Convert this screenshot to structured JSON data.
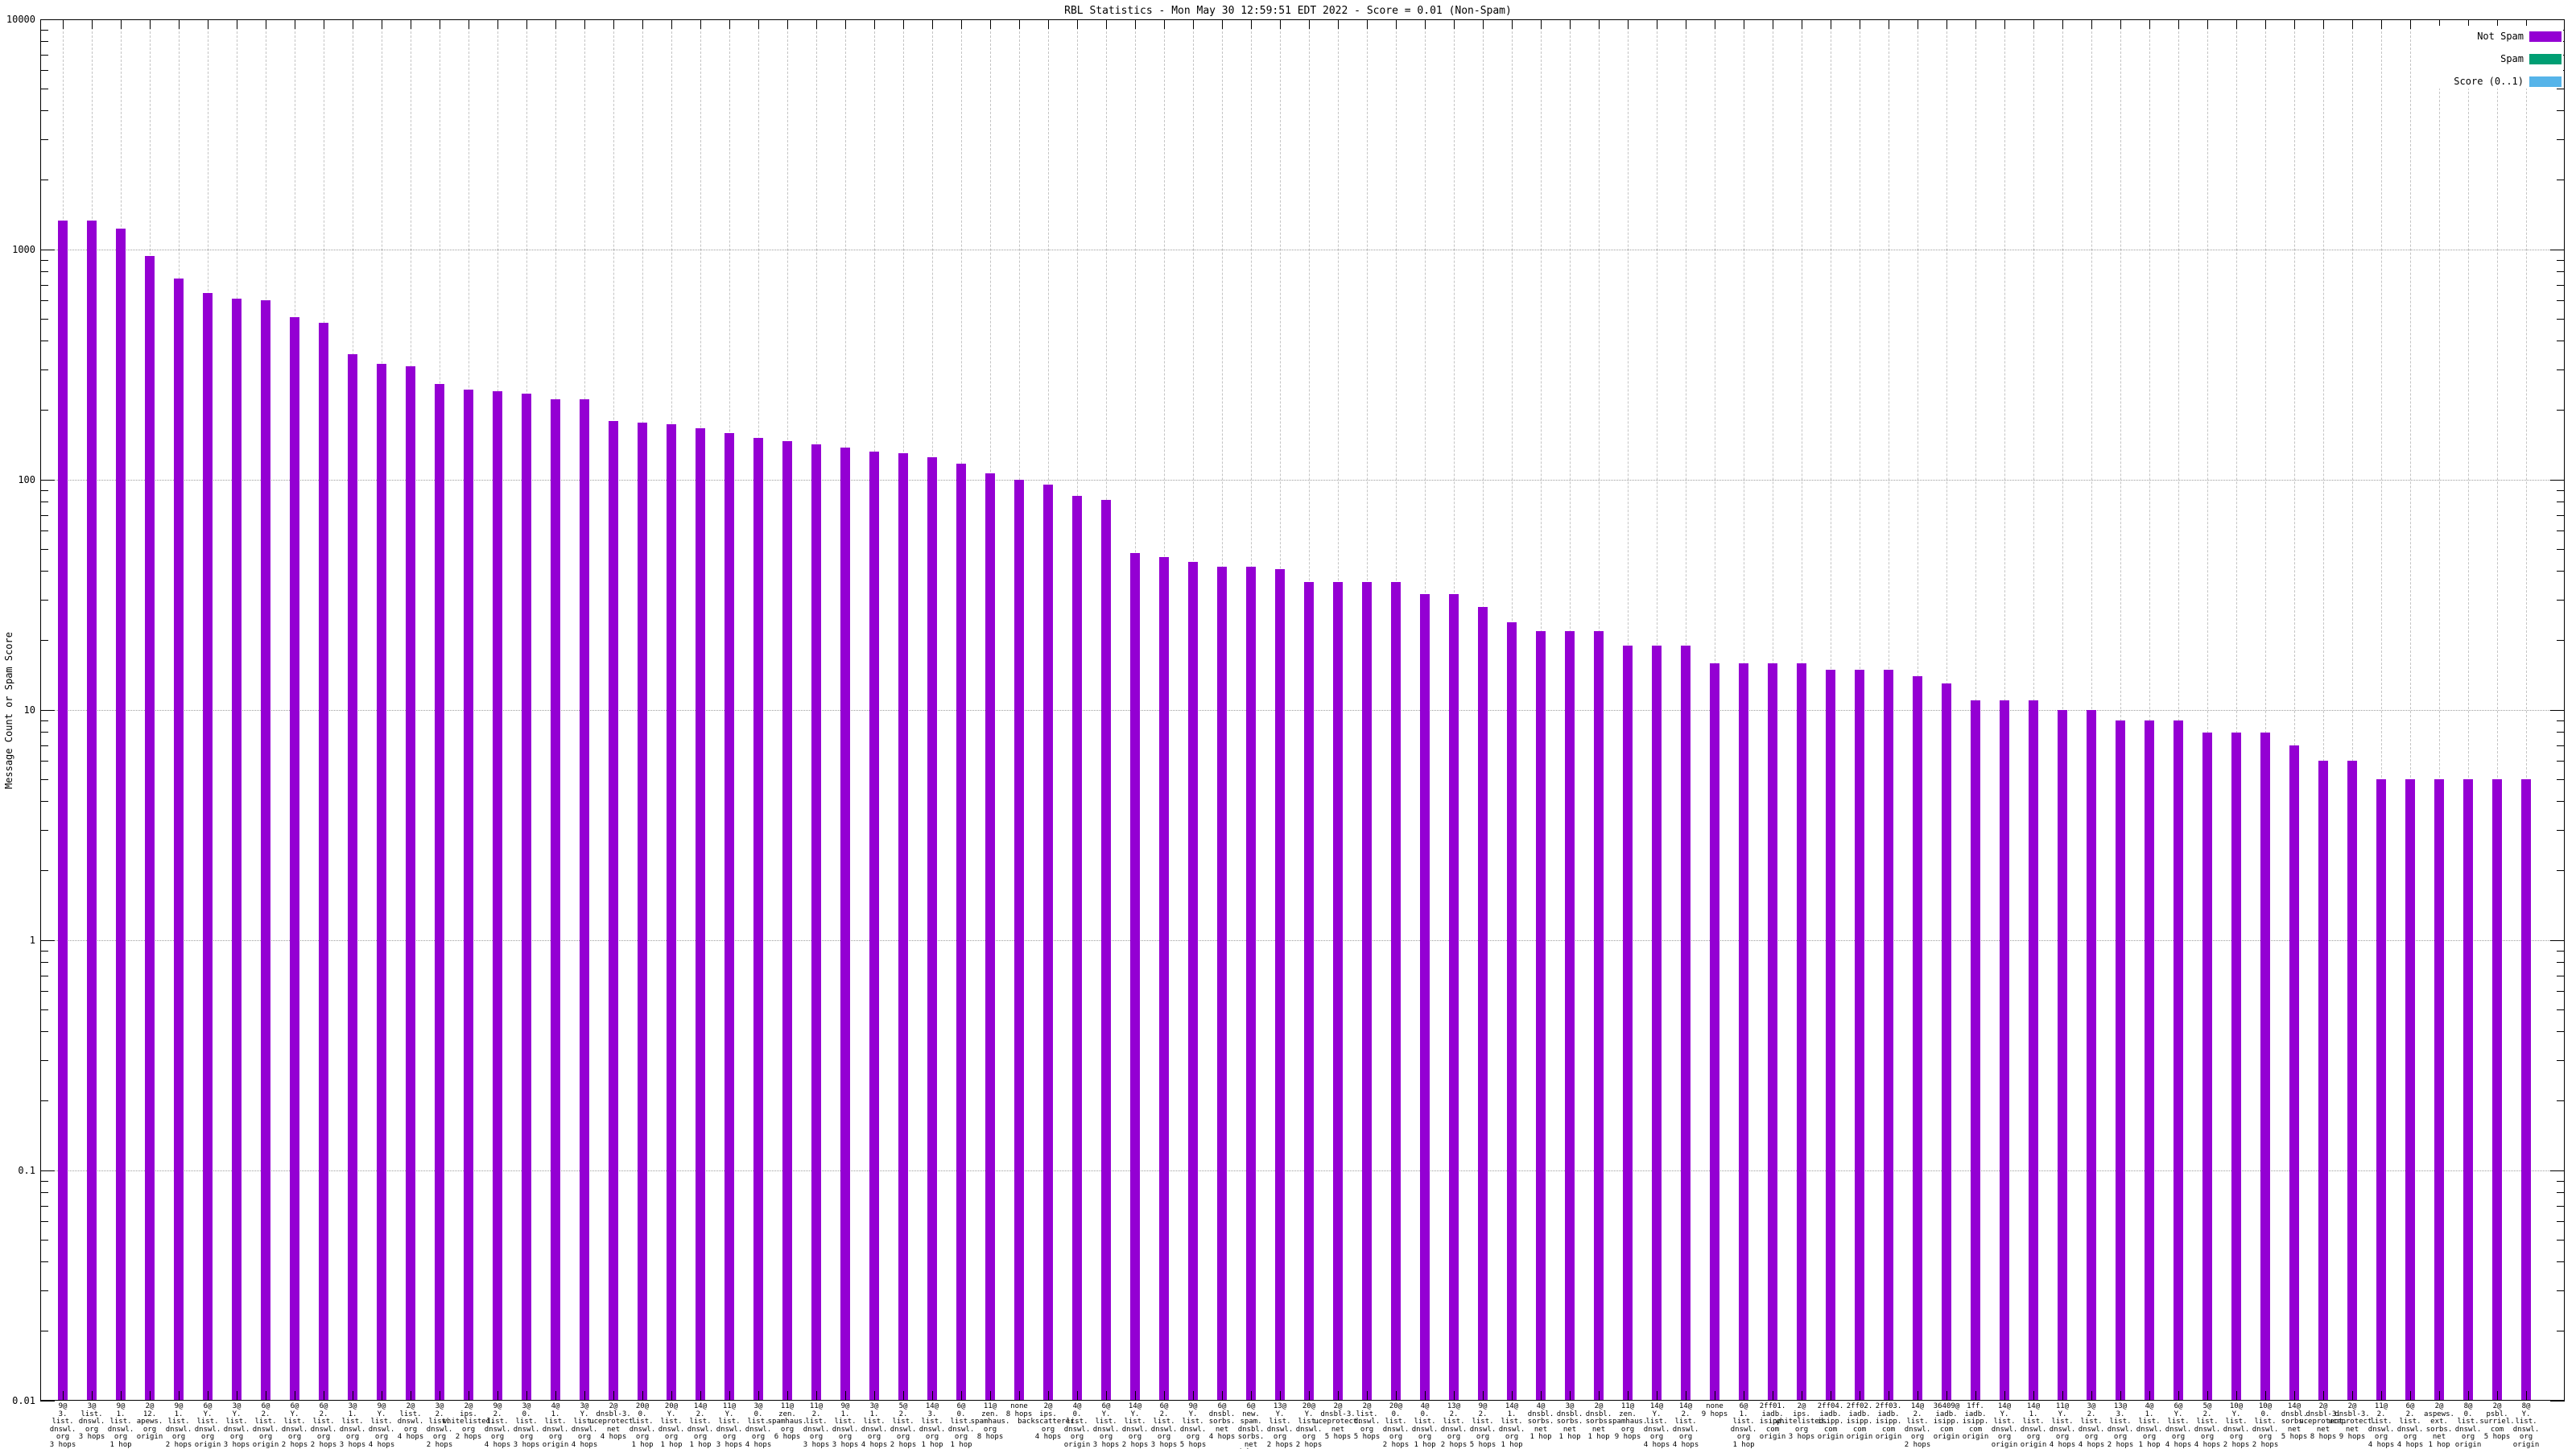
{
  "title": "RBL Statistics - Mon May 30 12:59:51 EDT 2022 - Score = 0.01 (Non-Spam)",
  "y_axis": {
    "label": "Message Count or Spam Score",
    "ticks": [
      "10000",
      "1000",
      "100",
      "10",
      "1",
      "0.1",
      "0.01"
    ]
  },
  "legend": {
    "items": [
      {
        "label": "Not Spam",
        "color": "#9400d3"
      },
      {
        "label": "Spam",
        "color": "#009e73"
      },
      {
        "label": "Score (0..1)",
        "color": "#56b4e9"
      }
    ]
  },
  "chart_data": {
    "type": "bar",
    "yscale": "log",
    "ylim": [
      0.01,
      10000
    ],
    "ylabel": "Message Count or Spam Score",
    "grid": true,
    "legend_position": "top-right",
    "series_name": "Not Spam",
    "bar_color": "#9400d3",
    "bars": [
      {
        "value": 1340,
        "label_lines": [
          "9@",
          "3.",
          "list.",
          "dnswl.",
          "org",
          "3 hops"
        ]
      },
      {
        "value": 1340,
        "label_lines": [
          "3@",
          "list.",
          "dnswl.",
          "org",
          "3 hops"
        ]
      },
      {
        "value": 1230,
        "label_lines": [
          "9@",
          "1.",
          "list.",
          "dnswl.",
          "org",
          "1 hop"
        ]
      },
      {
        "value": 940,
        "label_lines": [
          "2@",
          "12.",
          "apews.",
          "org",
          "origin"
        ]
      },
      {
        "value": 750,
        "label_lines": [
          "9@",
          "1.",
          "list.",
          "dnswl.",
          "org",
          "2 hops"
        ]
      },
      {
        "value": 650,
        "label_lines": [
          "6@",
          "Y.",
          "list.",
          "dnswl.",
          "org",
          "origin"
        ]
      },
      {
        "value": 610,
        "label_lines": [
          "3@",
          "Y.",
          "list.",
          "dnswl.",
          "org",
          "3 hops"
        ]
      },
      {
        "value": 600,
        "label_lines": [
          "6@",
          "2.",
          "list.",
          "dnswl.",
          "org",
          "origin"
        ]
      },
      {
        "value": 510,
        "label_lines": [
          "6@",
          "Y.",
          "list.",
          "dnswl.",
          "org",
          "2 hops"
        ]
      },
      {
        "value": 480,
        "label_lines": [
          "6@",
          "2.",
          "list.",
          "dnswl.",
          "org",
          "2 hops"
        ]
      },
      {
        "value": 350,
        "label_lines": [
          "3@",
          "1.",
          "list.",
          "dnswl.",
          "org",
          "3 hops"
        ]
      },
      {
        "value": 320,
        "label_lines": [
          "9@",
          "Y.",
          "list.",
          "dnswl.",
          "org",
          "4 hops"
        ]
      },
      {
        "value": 310,
        "label_lines": [
          "2@",
          "list.",
          "dnswl.",
          "org",
          "4 hops"
        ]
      },
      {
        "value": 260,
        "label_lines": [
          "3@",
          "2.",
          "list.",
          "dnswl.",
          "org",
          "2 hops"
        ]
      },
      {
        "value": 247,
        "label_lines": [
          "2@",
          "ips.",
          "whitelisted.",
          "org",
          "2 hops"
        ]
      },
      {
        "value": 242,
        "label_lines": [
          "9@",
          "2.",
          "list.",
          "dnswl.",
          "org",
          "4 hops"
        ]
      },
      {
        "value": 236,
        "label_lines": [
          "3@",
          "0.",
          "list.",
          "dnswl.",
          "org",
          "3 hops"
        ]
      },
      {
        "value": 224,
        "label_lines": [
          "4@",
          "1.",
          "list.",
          "dnswl.",
          "org",
          "origin"
        ]
      },
      {
        "value": 224,
        "label_lines": [
          "3@",
          "Y.",
          "list.",
          "dnswl.",
          "org",
          "4 hops"
        ]
      },
      {
        "value": 180,
        "label_lines": [
          "2@",
          "dnsbl-3.",
          "uceprotect.",
          "net",
          "4 hops"
        ]
      },
      {
        "value": 177,
        "label_lines": [
          "20@",
          "0.",
          "list.",
          "dnswl.",
          "org",
          "1 hop"
        ]
      },
      {
        "value": 174,
        "label_lines": [
          "20@",
          "Y.",
          "list.",
          "dnswl.",
          "org",
          "1 hop"
        ]
      },
      {
        "value": 168,
        "label_lines": [
          "14@",
          "2.",
          "list.",
          "dnswl.",
          "org",
          "1 hop"
        ]
      },
      {
        "value": 160,
        "label_lines": [
          "11@",
          "Y.",
          "list.",
          "dnswl.",
          "org",
          "3 hops"
        ]
      },
      {
        "value": 152,
        "label_lines": [
          "3@",
          "0.",
          "list.",
          "dnswl.",
          "org",
          "4 hops"
        ]
      },
      {
        "value": 147,
        "label_lines": [
          "11@",
          "zen.",
          "spamhaus.",
          "org",
          "6 hops"
        ]
      },
      {
        "value": 143,
        "label_lines": [
          "11@",
          "2.",
          "list.",
          "dnswl.",
          "org",
          "3 hops"
        ]
      },
      {
        "value": 138,
        "label_lines": [
          "9@",
          "1.",
          "list.",
          "dnswl.",
          "org",
          "3 hops"
        ]
      },
      {
        "value": 133,
        "label_lines": [
          "3@",
          "1.",
          "list.",
          "dnswl.",
          "org",
          "4 hops"
        ]
      },
      {
        "value": 130,
        "label_lines": [
          "5@",
          "2.",
          "list.",
          "dnswl.",
          "org",
          "2 hops"
        ]
      },
      {
        "value": 125,
        "label_lines": [
          "14@",
          "3.",
          "list.",
          "dnswl.",
          "org",
          "1 hop"
        ]
      },
      {
        "value": 117,
        "label_lines": [
          "6@",
          "0.",
          "list.",
          "dnswl.",
          "org",
          "1 hop"
        ]
      },
      {
        "value": 107,
        "label_lines": [
          "11@",
          "zen.",
          "spamhaus.",
          "org",
          "8 hops"
        ]
      },
      {
        "value": 100,
        "label_lines": [
          "none",
          "8 hops"
        ]
      },
      {
        "value": 95,
        "label_lines": [
          "2@",
          "ips.",
          "backscatterer.",
          "org",
          "4 hops"
        ]
      },
      {
        "value": 85,
        "label_lines": [
          "4@",
          "0.",
          "list.",
          "dnswl.",
          "org",
          "origin"
        ]
      },
      {
        "value": 82,
        "label_lines": [
          "6@",
          "Y.",
          "list.",
          "dnswl.",
          "org",
          "3 hops"
        ]
      },
      {
        "value": 48,
        "label_lines": [
          "14@",
          "Y.",
          "list.",
          "dnswl.",
          "org",
          "2 hops"
        ]
      },
      {
        "value": 46,
        "label_lines": [
          "6@",
          "2.",
          "list.",
          "dnswl.",
          "org",
          "3 hops"
        ]
      },
      {
        "value": 44,
        "label_lines": [
          "9@",
          "Y.",
          "list.",
          "dnswl.",
          "org",
          "5 hops"
        ]
      },
      {
        "value": 42,
        "label_lines": [
          "6@",
          "dnsbl.",
          "sorbs.",
          "net",
          "4 hops"
        ]
      },
      {
        "value": 42,
        "label_lines": [
          "6@",
          "new.",
          "spam.",
          "dnsbl.",
          "sorbs.",
          "net",
          "4 hops"
        ]
      },
      {
        "value": 41,
        "label_lines": [
          "13@",
          "Y.",
          "list.",
          "dnswl.",
          "org",
          "2 hops"
        ]
      },
      {
        "value": 36,
        "label_lines": [
          "20@",
          "Y.",
          "list.",
          "dnswl.",
          "org",
          "2 hops"
        ]
      },
      {
        "value": 36,
        "label_lines": [
          "2@",
          "dnsbl-3.",
          "uceprotect.",
          "net",
          "5 hops"
        ]
      },
      {
        "value": 36,
        "label_lines": [
          "2@",
          "list.",
          "dnswl.",
          "org",
          "5 hops"
        ]
      },
      {
        "value": 36,
        "label_lines": [
          "20@",
          "0.",
          "list.",
          "dnswl.",
          "org",
          "2 hops"
        ]
      },
      {
        "value": 32,
        "label_lines": [
          "4@",
          "0.",
          "list.",
          "dnswl.",
          "org",
          "1 hop"
        ]
      },
      {
        "value": 32,
        "label_lines": [
          "13@",
          "2.",
          "list.",
          "dnswl.",
          "org",
          "2 hops"
        ]
      },
      {
        "value": 28,
        "label_lines": [
          "9@",
          "2.",
          "list.",
          "dnswl.",
          "org",
          "5 hops"
        ]
      },
      {
        "value": 24,
        "label_lines": [
          "14@",
          "1.",
          "list.",
          "dnswl.",
          "org",
          "1 hop"
        ]
      },
      {
        "value": 22,
        "label_lines": [
          "4@",
          "dnsbl.",
          "sorbs.",
          "net",
          "1 hop"
        ]
      },
      {
        "value": 22,
        "label_lines": [
          "3@",
          "dnsbl.",
          "sorbs.",
          "net",
          "1 hop"
        ]
      },
      {
        "value": 22,
        "label_lines": [
          "2@",
          "dnsbl.",
          "sorbs.",
          "net",
          "1 hop"
        ]
      },
      {
        "value": 19,
        "label_lines": [
          "11@",
          "zen.",
          "spamhaus.",
          "org",
          "9 hops"
        ]
      },
      {
        "value": 19,
        "label_lines": [
          "14@",
          "Y.",
          "list.",
          "dnswl.",
          "org",
          "4 hops"
        ]
      },
      {
        "value": 19,
        "label_lines": [
          "14@",
          "2.",
          "list.",
          "dnswl.",
          "org",
          "4 hops"
        ]
      },
      {
        "value": 16,
        "label_lines": [
          "none",
          "9 hops"
        ]
      },
      {
        "value": 16,
        "label_lines": [
          "6@",
          "1.",
          "list.",
          "dnswl.",
          "org",
          "1 hop"
        ]
      },
      {
        "value": 16,
        "label_lines": [
          "2ff01.",
          "iadb.",
          "isipp.",
          "com",
          "origin"
        ]
      },
      {
        "value": 16,
        "label_lines": [
          "2@",
          "ips.",
          "whitelisted.",
          "org",
          "3 hops"
        ]
      },
      {
        "value": 15,
        "label_lines": [
          "2ff04.",
          "iadb.",
          "isipp.",
          "com",
          "origin"
        ]
      },
      {
        "value": 15,
        "label_lines": [
          "2ff02.",
          "iadb.",
          "isipp.",
          "com",
          "origin"
        ]
      },
      {
        "value": 15,
        "label_lines": [
          "2ff03.",
          "iadb.",
          "isipp.",
          "com",
          "origin"
        ]
      },
      {
        "value": 14,
        "label_lines": [
          "14@",
          "2.",
          "list.",
          "dnswl.",
          "org",
          "2 hops"
        ]
      },
      {
        "value": 13,
        "label_lines": [
          "36409@",
          "iadb.",
          "isipp.",
          "com",
          "origin"
        ]
      },
      {
        "value": 11,
        "label_lines": [
          "1ff.",
          "iadb.",
          "isipp.",
          "com",
          "origin"
        ]
      },
      {
        "value": 11,
        "label_lines": [
          "14@",
          "Y.",
          "list.",
          "dnswl.",
          "org",
          "origin"
        ]
      },
      {
        "value": 11,
        "label_lines": [
          "14@",
          "1.",
          "list.",
          "dnswl.",
          "org",
          "origin"
        ]
      },
      {
        "value": 10,
        "label_lines": [
          "11@",
          "Y.",
          "list.",
          "dnswl.",
          "org",
          "4 hops"
        ]
      },
      {
        "value": 10,
        "label_lines": [
          "3@",
          "2.",
          "list.",
          "dnswl.",
          "org",
          "4 hops"
        ]
      },
      {
        "value": 9,
        "label_lines": [
          "13@",
          "3.",
          "list.",
          "dnswl.",
          "org",
          "2 hops"
        ]
      },
      {
        "value": 9,
        "label_lines": [
          "4@",
          "1.",
          "list.",
          "dnswl.",
          "org",
          "1 hop"
        ]
      },
      {
        "value": 9,
        "label_lines": [
          "6@",
          "Y.",
          "list.",
          "dnswl.",
          "org",
          "4 hops"
        ]
      },
      {
        "value": 8,
        "label_lines": [
          "5@",
          "2.",
          "list.",
          "dnswl.",
          "org",
          "4 hops"
        ]
      },
      {
        "value": 8,
        "label_lines": [
          "10@",
          "Y.",
          "list.",
          "dnswl.",
          "org",
          "2 hops"
        ]
      },
      {
        "value": 8,
        "label_lines": [
          "10@",
          "0.",
          "list.",
          "dnswl.",
          "org",
          "2 hops"
        ]
      },
      {
        "value": 7,
        "label_lines": [
          "14@",
          "dnsbl.",
          "sorbs.",
          "net",
          "5 hops"
        ]
      },
      {
        "value": 6,
        "label_lines": [
          "2@",
          "dnsbl-3.",
          "uceprotect.",
          "net",
          "8 hops"
        ]
      },
      {
        "value": 6,
        "label_lines": [
          "2@",
          "dnsbl-3.",
          "uceprotect.",
          "net",
          "9 hops"
        ]
      },
      {
        "value": 5,
        "label_lines": [
          "11@",
          "2.",
          "list.",
          "dnswl.",
          "org",
          "4 hops"
        ]
      },
      {
        "value": 5,
        "label_lines": [
          "6@",
          "2.",
          "list.",
          "dnswl.",
          "org",
          "4 hops"
        ]
      },
      {
        "value": 5,
        "label_lines": [
          "2@",
          "aspews.",
          "ext.",
          "sorbs.",
          "net",
          "1 hop"
        ]
      },
      {
        "value": 5,
        "label_lines": [
          "8@",
          "0.",
          "list.",
          "dnswl.",
          "org",
          "origin"
        ]
      },
      {
        "value": 5,
        "label_lines": [
          "2@",
          "psbl.",
          "surriel.",
          "com",
          "5 hops"
        ]
      },
      {
        "value": 5,
        "label_lines": [
          "8@",
          "Y.",
          "list.",
          "dnswl.",
          "org",
          "origin"
        ]
      }
    ]
  }
}
